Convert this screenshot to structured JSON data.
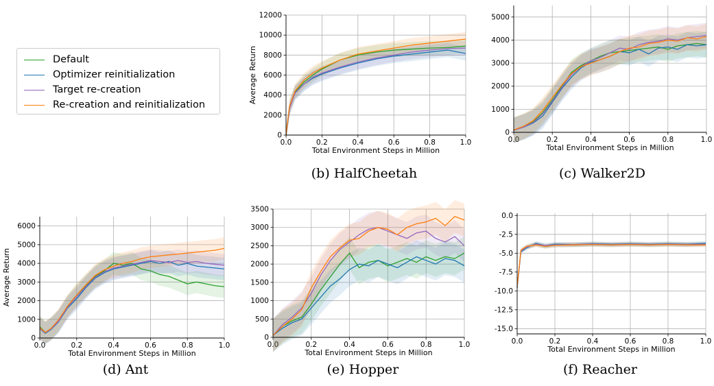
{
  "legend": {
    "entries": [
      {
        "label": "Default",
        "color": "#2ca02c"
      },
      {
        "label": "Optimizer reinitialization",
        "color": "#1f77b4"
      },
      {
        "label": "Target re-creation",
        "color": "#9467bd"
      },
      {
        "label": "Re-creation and reinitialization",
        "color": "#ff7f0e"
      }
    ]
  },
  "chart_data": [
    {
      "id": "b",
      "type": "line",
      "caption": "(b) HalfCheetah",
      "xlabel": "Total Environment Steps in Million",
      "ylabel": "Average Return",
      "xlim": [
        0,
        1.0
      ],
      "ylim": [
        0,
        12000
      ],
      "xticks": [
        "0.0",
        "0.2",
        "0.4",
        "0.6",
        "0.8",
        "1.0"
      ],
      "yticks": [
        "0",
        "2000",
        "4000",
        "6000",
        "8000",
        "10000",
        "12000"
      ],
      "grid": true,
      "band": 700,
      "series": [
        {
          "name": "Default",
          "color": "#2ca02c",
          "x": [
            0,
            0.02,
            0.05,
            0.1,
            0.15,
            0.2,
            0.3,
            0.4,
            0.5,
            0.6,
            0.7,
            0.8,
            0.9,
            1.0
          ],
          "y": [
            0,
            2800,
            4300,
            5300,
            6000,
            6600,
            7500,
            8000,
            8300,
            8500,
            8600,
            8700,
            8750,
            8900
          ]
        },
        {
          "name": "Optimizer reinitialization",
          "color": "#1f77b4",
          "x": [
            0,
            0.02,
            0.05,
            0.1,
            0.15,
            0.2,
            0.3,
            0.4,
            0.5,
            0.6,
            0.7,
            0.8,
            0.9,
            1.0
          ],
          "y": [
            0,
            2700,
            4200,
            5100,
            5700,
            6100,
            6700,
            7200,
            7600,
            7900,
            8100,
            8300,
            8500,
            8150
          ]
        },
        {
          "name": "Target re-creation",
          "color": "#9467bd",
          "x": [
            0,
            0.02,
            0.05,
            0.1,
            0.15,
            0.2,
            0.3,
            0.4,
            0.5,
            0.6,
            0.7,
            0.8,
            0.9,
            1.0
          ],
          "y": [
            0,
            2700,
            4200,
            5100,
            5800,
            6200,
            6800,
            7300,
            7700,
            8000,
            8300,
            8500,
            8650,
            8700
          ]
        },
        {
          "name": "Re-creation and reinitialization",
          "color": "#ff7f0e",
          "x": [
            0,
            0.02,
            0.05,
            0.1,
            0.15,
            0.2,
            0.3,
            0.4,
            0.5,
            0.6,
            0.7,
            0.8,
            0.9,
            1.0
          ],
          "y": [
            0,
            2900,
            4400,
            5500,
            6200,
            6700,
            7500,
            8100,
            8400,
            8700,
            9000,
            9200,
            9400,
            9600
          ]
        }
      ]
    },
    {
      "id": "c",
      "type": "line",
      "caption": "(c) Walker2D",
      "xlabel": "Total Environment Steps in Million",
      "ylabel": "",
      "xlim": [
        0,
        1.0
      ],
      "ylim": [
        0,
        5500
      ],
      "xticks": [
        "0.0",
        "0.2",
        "0.4",
        "0.6",
        "0.8",
        "1.0"
      ],
      "yticks": [
        "0",
        "1000",
        "2000",
        "3000",
        "4000",
        "5000"
      ],
      "grid": true,
      "band": 550,
      "series": [
        {
          "name": "Default",
          "color": "#2ca02c",
          "x": [
            0,
            0.05,
            0.1,
            0.15,
            0.2,
            0.25,
            0.3,
            0.35,
            0.4,
            0.45,
            0.5,
            0.55,
            0.6,
            0.65,
            0.7,
            0.75,
            0.8,
            0.85,
            0.9,
            0.95,
            1.0
          ],
          "y": [
            100,
            250,
            450,
            850,
            1400,
            2000,
            2600,
            2900,
            3100,
            3300,
            3450,
            3500,
            3550,
            3600,
            3650,
            3700,
            3600,
            3750,
            3800,
            3850,
            3800
          ]
        },
        {
          "name": "Optimizer reinitialization",
          "color": "#1f77b4",
          "x": [
            0,
            0.05,
            0.1,
            0.15,
            0.2,
            0.25,
            0.3,
            0.35,
            0.4,
            0.45,
            0.5,
            0.55,
            0.6,
            0.65,
            0.7,
            0.75,
            0.8,
            0.85,
            0.9,
            0.95,
            1.0
          ],
          "y": [
            80,
            220,
            400,
            700,
            1300,
            1900,
            2400,
            2800,
            3050,
            3150,
            3300,
            3500,
            3450,
            3600,
            3400,
            3650,
            3700,
            3600,
            3800,
            3750,
            3800
          ]
        },
        {
          "name": "Target re-creation",
          "color": "#9467bd",
          "x": [
            0,
            0.05,
            0.1,
            0.15,
            0.2,
            0.25,
            0.3,
            0.35,
            0.4,
            0.45,
            0.5,
            0.55,
            0.6,
            0.65,
            0.7,
            0.75,
            0.8,
            0.85,
            0.9,
            0.95,
            1.0
          ],
          "y": [
            80,
            230,
            420,
            800,
            1350,
            1950,
            2500,
            2850,
            3100,
            3250,
            3450,
            3650,
            3600,
            3800,
            3900,
            3950,
            4050,
            4000,
            4100,
            4150,
            4200
          ]
        },
        {
          "name": "Re-creation and reinitialization",
          "color": "#ff7f0e",
          "x": [
            0,
            0.05,
            0.1,
            0.15,
            0.2,
            0.25,
            0.3,
            0.35,
            0.4,
            0.45,
            0.5,
            0.55,
            0.6,
            0.65,
            0.7,
            0.75,
            0.8,
            0.85,
            0.9,
            0.95,
            1.0
          ],
          "y": [
            100,
            260,
            500,
            950,
            1500,
            2050,
            2550,
            2850,
            3000,
            3150,
            3300,
            3500,
            3650,
            3700,
            3850,
            3900,
            4000,
            3950,
            4100,
            4050,
            4150
          ]
        }
      ]
    },
    {
      "id": "d",
      "type": "line",
      "caption": "(d) Ant",
      "xlabel": "Total Environment Steps in Million",
      "ylabel": "Average Return",
      "xlim": [
        0,
        1.0
      ],
      "ylim": [
        0,
        6500
      ],
      "xticks": [
        "0.0",
        "0.2",
        "0.4",
        "0.6",
        "0.8",
        "1.0"
      ],
      "yticks": [
        "0",
        "1000",
        "2000",
        "3000",
        "4000",
        "5000",
        "6000"
      ],
      "grid": true,
      "band": 600,
      "series": [
        {
          "name": "Default",
          "color": "#2ca02c",
          "x": [
            0,
            0.03,
            0.06,
            0.1,
            0.15,
            0.2,
            0.25,
            0.3,
            0.35,
            0.4,
            0.45,
            0.5,
            0.55,
            0.6,
            0.65,
            0.7,
            0.75,
            0.8,
            0.85,
            0.9,
            0.95,
            1.0
          ],
          "y": [
            600,
            300,
            500,
            900,
            1700,
            2300,
            2800,
            3300,
            3600,
            4000,
            3900,
            4000,
            3700,
            3600,
            3400,
            3300,
            3100,
            2900,
            3000,
            2900,
            2800,
            2750
          ]
        },
        {
          "name": "Optimizer reinitialization",
          "color": "#1f77b4",
          "x": [
            0,
            0.03,
            0.06,
            0.1,
            0.15,
            0.2,
            0.25,
            0.3,
            0.35,
            0.4,
            0.45,
            0.5,
            0.55,
            0.6,
            0.65,
            0.7,
            0.75,
            0.8,
            0.85,
            0.9,
            0.95,
            1.0
          ],
          "y": [
            500,
            250,
            450,
            850,
            1600,
            2100,
            2700,
            3200,
            3500,
            3700,
            3800,
            3900,
            4000,
            4100,
            4000,
            4100,
            3900,
            4000,
            3850,
            3800,
            3750,
            3700
          ]
        },
        {
          "name": "Target re-creation",
          "color": "#9467bd",
          "x": [
            0,
            0.03,
            0.06,
            0.1,
            0.15,
            0.2,
            0.25,
            0.3,
            0.35,
            0.4,
            0.45,
            0.5,
            0.55,
            0.6,
            0.65,
            0.7,
            0.75,
            0.8,
            0.85,
            0.9,
            0.95,
            1.0
          ],
          "y": [
            500,
            280,
            480,
            880,
            1650,
            2200,
            2750,
            3250,
            3550,
            3750,
            3850,
            3950,
            4050,
            4150,
            4100,
            4050,
            4150,
            4050,
            4100,
            4000,
            3950,
            3900
          ]
        },
        {
          "name": "Re-creation and reinitialization",
          "color": "#ff7f0e",
          "x": [
            0,
            0.03,
            0.06,
            0.1,
            0.15,
            0.2,
            0.25,
            0.3,
            0.35,
            0.4,
            0.45,
            0.5,
            0.55,
            0.6,
            0.65,
            0.7,
            0.75,
            0.8,
            0.85,
            0.9,
            0.95,
            1.0
          ],
          "y": [
            550,
            300,
            500,
            950,
            1700,
            2300,
            2850,
            3350,
            3650,
            3850,
            4000,
            4100,
            4250,
            4350,
            4400,
            4450,
            4500,
            4550,
            4600,
            4650,
            4700,
            4800
          ]
        }
      ]
    },
    {
      "id": "e",
      "type": "line",
      "caption": "(e) Hopper",
      "xlabel": "Total Environment Steps in Million",
      "ylabel": "",
      "xlim": [
        0,
        1.0
      ],
      "ylim": [
        0,
        3500
      ],
      "xticks": [
        "0.0",
        "0.2",
        "0.4",
        "0.6",
        "0.8",
        "1.0"
      ],
      "yticks": [
        "0",
        "500",
        "1000",
        "1500",
        "2000",
        "2500",
        "3000",
        "3500"
      ],
      "grid": true,
      "band": 450,
      "series": [
        {
          "name": "Default",
          "color": "#2ca02c",
          "x": [
            0,
            0.05,
            0.1,
            0.15,
            0.2,
            0.25,
            0.3,
            0.35,
            0.4,
            0.45,
            0.5,
            0.55,
            0.6,
            0.65,
            0.7,
            0.75,
            0.8,
            0.85,
            0.9,
            0.95,
            1.0
          ],
          "y": [
            50,
            300,
            450,
            550,
            900,
            1300,
            1650,
            2000,
            2300,
            1900,
            2050,
            2100,
            1950,
            2050,
            2150,
            2050,
            2200,
            2100,
            2200,
            2150,
            2300
          ]
        },
        {
          "name": "Optimizer reinitialization",
          "color": "#1f77b4",
          "x": [
            0,
            0.05,
            0.1,
            0.15,
            0.2,
            0.25,
            0.3,
            0.35,
            0.4,
            0.45,
            0.5,
            0.55,
            0.6,
            0.65,
            0.7,
            0.75,
            0.8,
            0.85,
            0.9,
            0.95,
            1.0
          ],
          "y": [
            50,
            250,
            400,
            500,
            800,
            1100,
            1400,
            1600,
            1850,
            2000,
            1950,
            2100,
            2000,
            1900,
            2050,
            2200,
            2100,
            2000,
            2150,
            2100,
            1950
          ]
        },
        {
          "name": "Target re-creation",
          "color": "#9467bd",
          "x": [
            0,
            0.05,
            0.1,
            0.15,
            0.2,
            0.25,
            0.3,
            0.35,
            0.4,
            0.45,
            0.5,
            0.55,
            0.6,
            0.65,
            0.7,
            0.75,
            0.8,
            0.85,
            0.9,
            0.95,
            1.0
          ],
          "y": [
            50,
            350,
            550,
            800,
            1200,
            1700,
            2100,
            2400,
            2600,
            2800,
            2950,
            3000,
            2900,
            2800,
            2700,
            2850,
            2900,
            2700,
            2600,
            2750,
            2500
          ]
        },
        {
          "name": "Re-creation and reinitialization",
          "color": "#ff7f0e",
          "x": [
            0,
            0.05,
            0.1,
            0.15,
            0.2,
            0.25,
            0.3,
            0.35,
            0.4,
            0.45,
            0.5,
            0.55,
            0.6,
            0.65,
            0.7,
            0.75,
            0.8,
            0.85,
            0.9,
            0.95,
            1.0
          ],
          "y": [
            50,
            300,
            500,
            750,
            1350,
            1800,
            2200,
            2450,
            2650,
            2700,
            2900,
            3000,
            2950,
            2800,
            3000,
            3100,
            3150,
            3250,
            3050,
            3300,
            3200
          ]
        }
      ]
    },
    {
      "id": "f",
      "type": "line",
      "caption": "(f) Reacher",
      "xlabel": "Total Environment Steps in Million",
      "ylabel": "",
      "xlim": [
        0,
        1.0
      ],
      "ylim": [
        -15.7,
        0.3
      ],
      "xticks": [
        "0.0",
        "0.2",
        "0.4",
        "0.6",
        "0.8",
        "1.0"
      ],
      "yticks": [
        "0.0",
        "-2.5",
        "-5.0",
        "-7.5",
        "-10.0",
        "-12.5",
        "-15.0"
      ],
      "grid": true,
      "band": 0.3,
      "series": [
        {
          "name": "Default",
          "color": "#2ca02c",
          "x": [
            0,
            0.02,
            0.05,
            0.1,
            0.15,
            0.2,
            0.3,
            0.4,
            0.5,
            0.6,
            0.7,
            0.8,
            0.9,
            1.0
          ],
          "y": [
            -9.5,
            -4.7,
            -4.2,
            -3.8,
            -4.1,
            -3.9,
            -3.9,
            -3.8,
            -3.9,
            -3.8,
            -3.9,
            -3.8,
            -3.85,
            -3.8
          ]
        },
        {
          "name": "Optimizer reinitialization",
          "color": "#1f77b4",
          "x": [
            0,
            0.02,
            0.05,
            0.1,
            0.15,
            0.2,
            0.3,
            0.4,
            0.5,
            0.6,
            0.7,
            0.8,
            0.9,
            1.0
          ],
          "y": [
            -9.6,
            -4.8,
            -4.3,
            -3.7,
            -4.0,
            -3.8,
            -3.85,
            -3.75,
            -3.8,
            -3.75,
            -3.8,
            -3.75,
            -3.8,
            -3.7
          ]
        },
        {
          "name": "Target re-creation",
          "color": "#9467bd",
          "x": [
            0,
            0.02,
            0.05,
            0.1,
            0.15,
            0.2,
            0.3,
            0.4,
            0.5,
            0.6,
            0.7,
            0.8,
            0.9,
            1.0
          ],
          "y": [
            -9.5,
            -4.7,
            -4.2,
            -3.8,
            -4.0,
            -3.9,
            -3.85,
            -3.8,
            -3.85,
            -3.8,
            -3.85,
            -3.8,
            -3.85,
            -3.8
          ]
        },
        {
          "name": "Re-creation and reinitialization",
          "color": "#ff7f0e",
          "x": [
            0,
            0.02,
            0.05,
            0.1,
            0.15,
            0.2,
            0.3,
            0.4,
            0.5,
            0.6,
            0.7,
            0.8,
            0.9,
            1.0
          ],
          "y": [
            -9.4,
            -4.6,
            -4.1,
            -3.9,
            -4.1,
            -3.95,
            -3.9,
            -3.85,
            -3.9,
            -3.85,
            -3.9,
            -3.85,
            -3.9,
            -3.9
          ]
        }
      ]
    }
  ]
}
